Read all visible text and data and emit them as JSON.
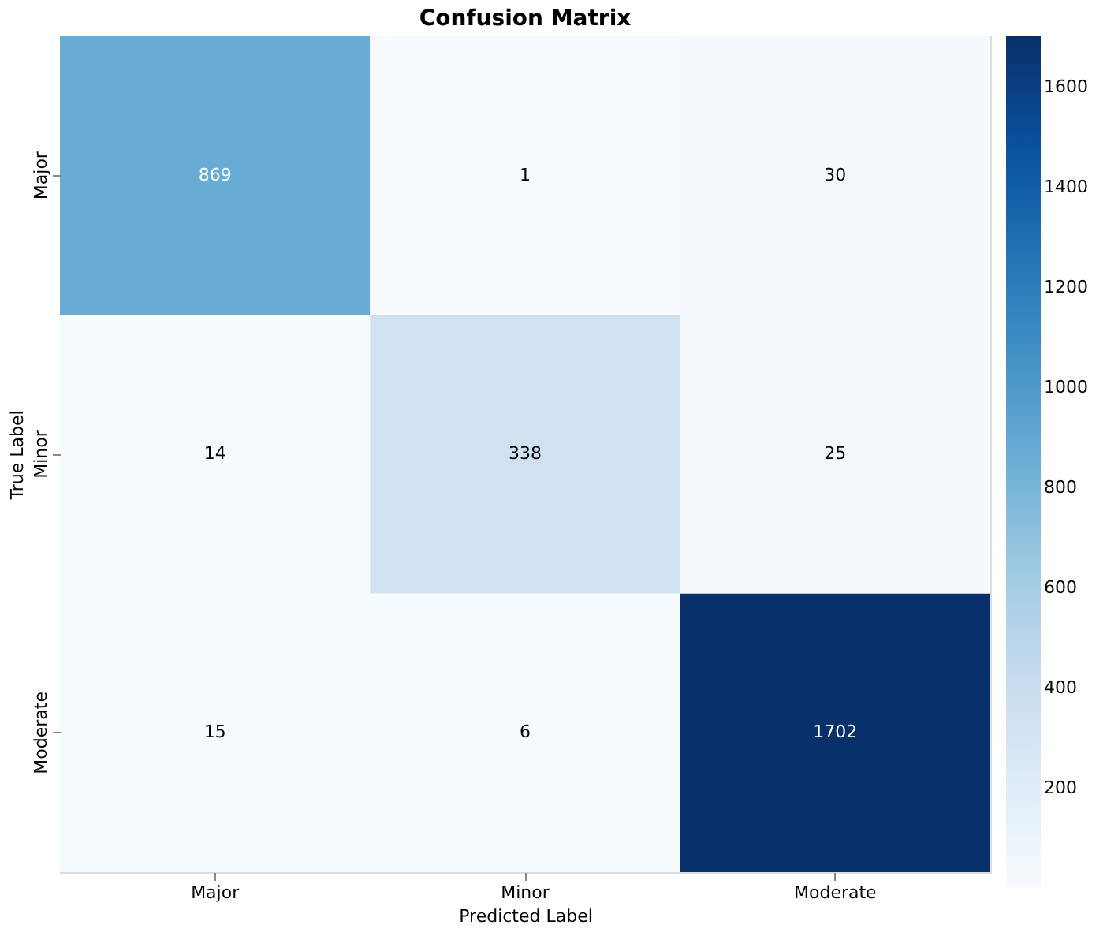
{
  "chart_data": {
    "type": "heatmap",
    "title": "Confusion Matrix",
    "xlabel": "Predicted Label",
    "ylabel": "True Label",
    "categories": [
      "Major",
      "Minor",
      "Moderate"
    ],
    "y_categories": [
      "Major",
      "Minor",
      "Moderate"
    ],
    "cells": [
      [
        869,
        1,
        30
      ],
      [
        14,
        338,
        25
      ],
      [
        15,
        6,
        1702
      ]
    ],
    "clim": [
      1,
      1702
    ],
    "cticks": [
      200,
      400,
      600,
      800,
      1000,
      1200,
      1400,
      1600
    ],
    "data_labels": true
  }
}
